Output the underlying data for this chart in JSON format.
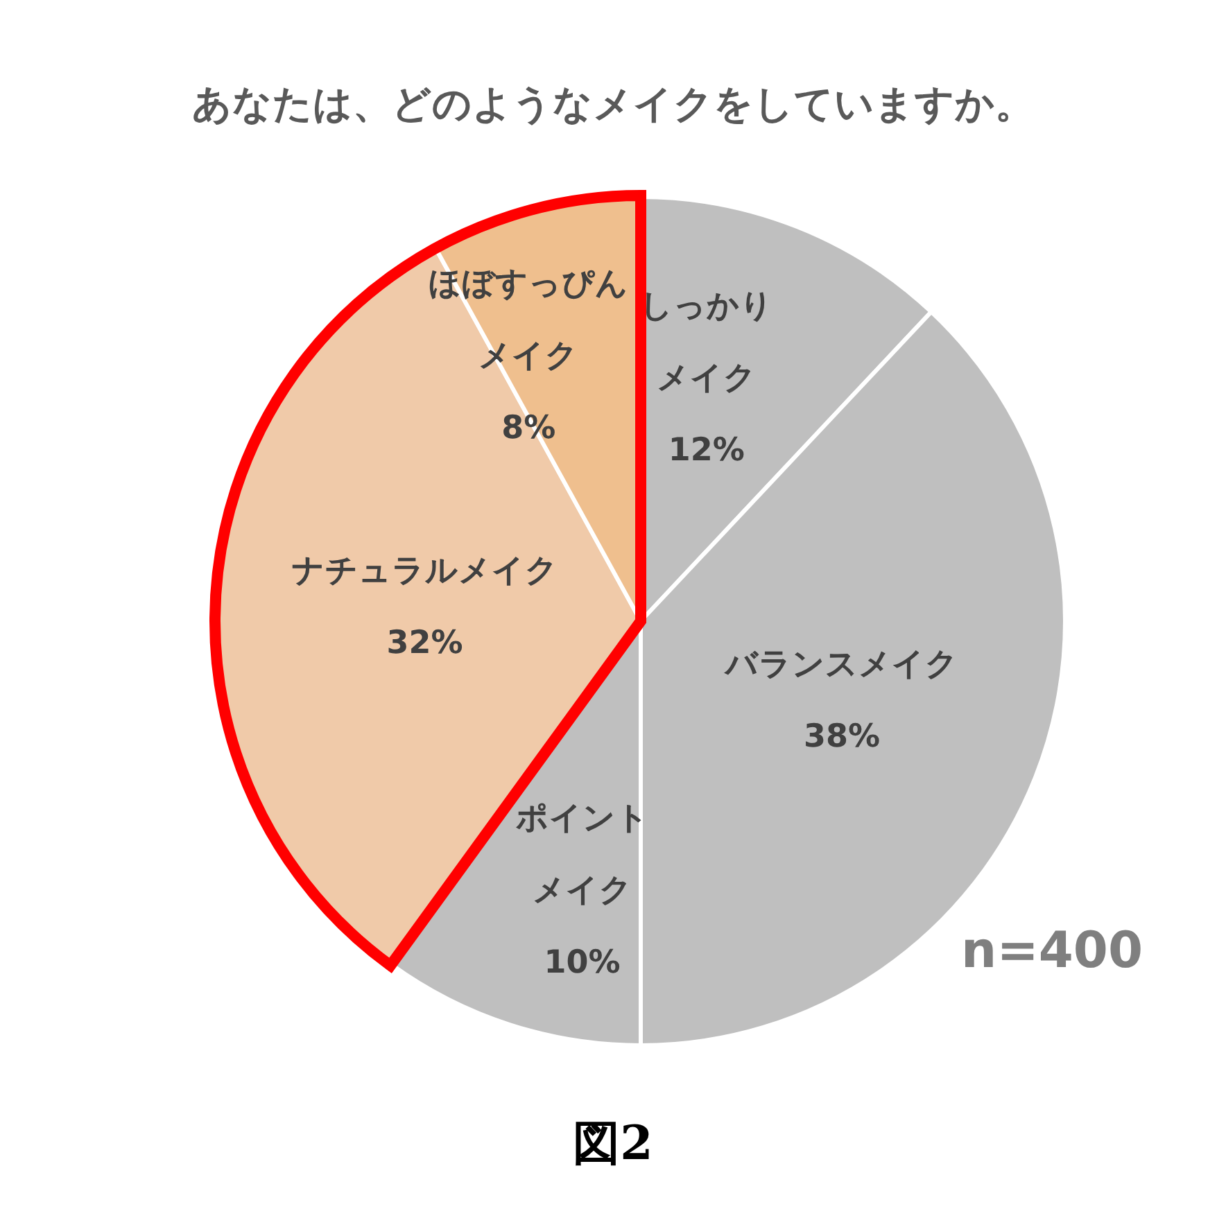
{
  "chart_data": {
    "type": "pie",
    "title": "あなたは、どのようなメイクをしていますか。",
    "categories": [
      "しっかりメイク",
      "バランスメイク",
      "ポイントメイク",
      "ナチュラルメイク",
      "ほぼすっぴんメイク"
    ],
    "values": [
      12,
      38,
      10,
      32,
      8
    ],
    "value_labels": [
      "12%",
      "38%",
      "10%",
      "32%",
      "8%"
    ],
    "colors": [
      "#bfbfbf",
      "#bfbfbf",
      "#bfbfbf",
      "#f0caa9",
      "#efbf8e"
    ],
    "annotations": [
      "n=400",
      "図2"
    ],
    "legend": false
  }
}
